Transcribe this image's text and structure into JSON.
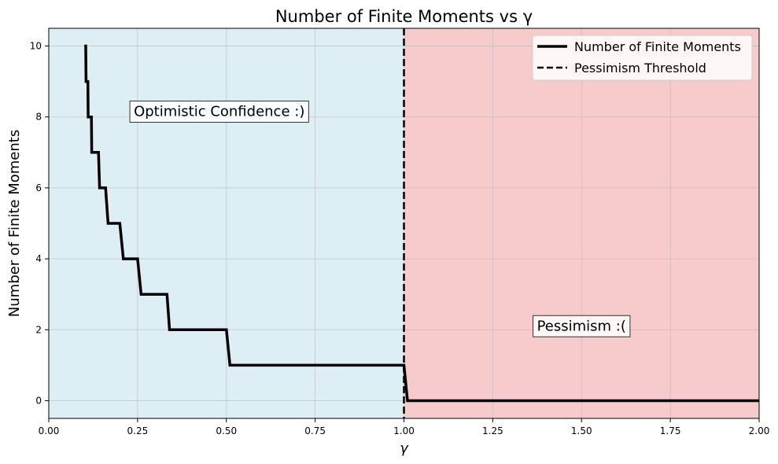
{
  "chart_data": {
    "type": "line",
    "title": "Number of Finite Moments vs γ",
    "xlabel": "γ",
    "ylabel": "Number of Finite Moments",
    "xlim": [
      0,
      2
    ],
    "ylim": [
      -0.5,
      10.5
    ],
    "xticks": [
      0,
      0.25,
      0.5,
      0.75,
      1,
      1.25,
      1.5,
      1.75,
      2
    ],
    "xtick_labels": [
      "0.00",
      "0.25",
      "0.50",
      "0.75",
      "1.00",
      "1.25",
      "1.50",
      "1.75",
      "2.00"
    ],
    "yticks": [
      0,
      2,
      4,
      6,
      8,
      10
    ],
    "ytick_labels": [
      "0",
      "2",
      "4",
      "6",
      "8",
      "10"
    ],
    "grid": true,
    "legend_position": "top-right",
    "regions": [
      {
        "x_from": 0,
        "x_to": 1,
        "color": "#ddeef5"
      },
      {
        "x_from": 1,
        "x_to": 2,
        "color": "#f7cbcb"
      }
    ],
    "series": [
      {
        "name": "Number of Finite Moments",
        "style": "solid",
        "color": "#000000",
        "x": [
          0.1,
          0.104,
          0.105,
          0.11,
          0.111,
          0.12,
          0.121,
          0.13,
          0.131,
          0.14,
          0.143,
          0.16,
          0.167,
          0.2,
          0.21,
          0.25,
          0.26,
          0.333,
          0.34,
          0.5,
          0.51,
          1.0,
          1.01,
          2.0
        ],
        "y": [
          10,
          10,
          9,
          9,
          8,
          8,
          7,
          7,
          7,
          7,
          6,
          6,
          5,
          5,
          4,
          4,
          3,
          3,
          2,
          2,
          1,
          1,
          0,
          0
        ]
      },
      {
        "name": "Pessimism Threshold",
        "style": "dashed",
        "color": "#000000",
        "x": [
          1,
          1
        ],
        "y": [
          -0.5,
          10.5
        ]
      }
    ],
    "annotations": [
      {
        "text": "Optimistic Confidence :)",
        "x": 0.48,
        "y": 8.15
      },
      {
        "text": "Pessimism :(",
        "x": 1.5,
        "y": 2.1
      }
    ]
  }
}
